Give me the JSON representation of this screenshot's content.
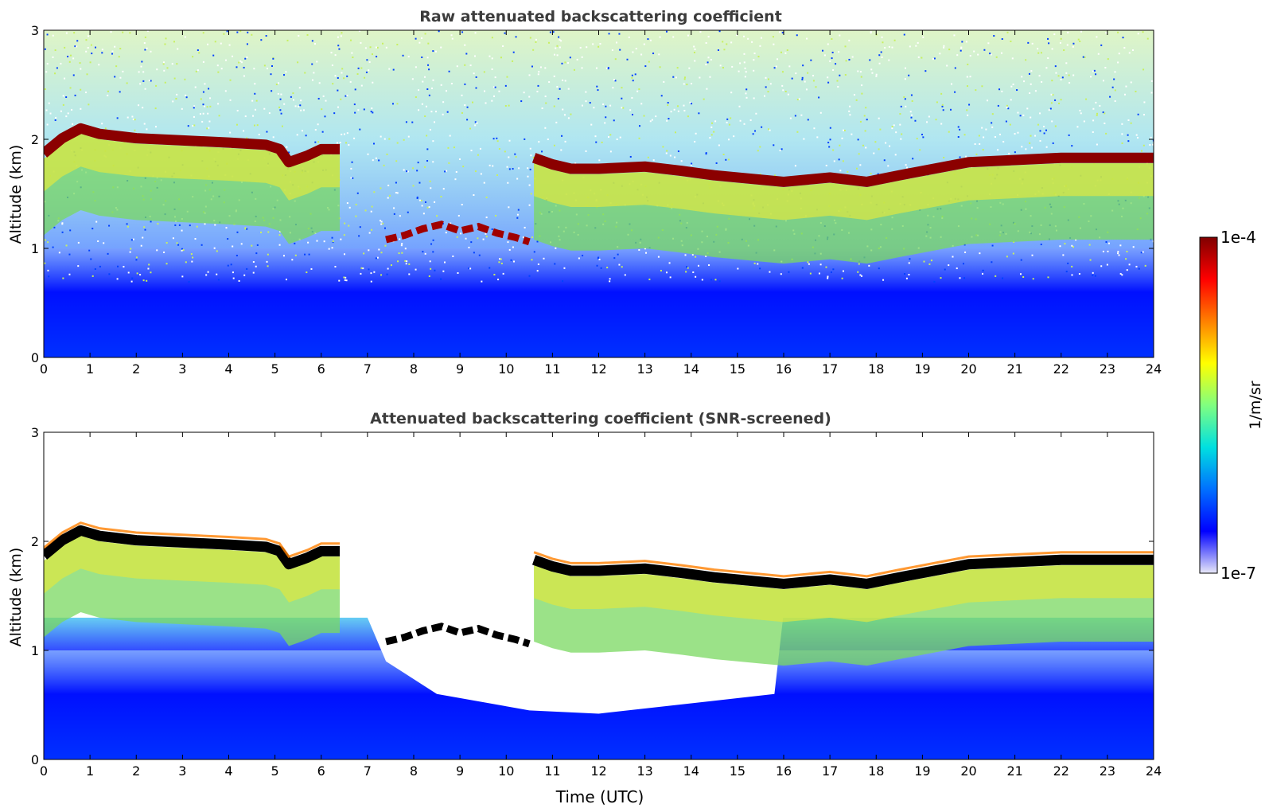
{
  "chart_data": [
    {
      "type": "heatmap",
      "title": "Raw attenuated backscattering coefficient",
      "xlabel": "",
      "ylabel": "Altitude (km)",
      "xlim": [
        0,
        24
      ],
      "ylim": [
        0,
        3
      ],
      "xticks": [
        "0",
        "1",
        "2",
        "3",
        "4",
        "5",
        "6",
        "7",
        "8",
        "9",
        "10",
        "11",
        "12",
        "13",
        "14",
        "15",
        "16",
        "17",
        "18",
        "19",
        "20",
        "21",
        "22",
        "23",
        "24"
      ],
      "yticks": [
        "0",
        "1",
        "2",
        "3"
      ],
      "cloud_base_km": [
        [
          0,
          1.82
        ],
        [
          0.4,
          1.96
        ],
        [
          0.8,
          2.05
        ],
        [
          1.2,
          2.0
        ],
        [
          1.6,
          1.98
        ],
        [
          2,
          1.96
        ],
        [
          3,
          1.94
        ],
        [
          4,
          1.92
        ],
        [
          4.8,
          1.9
        ],
        [
          5.1,
          1.86
        ],
        [
          5.3,
          1.74
        ],
        [
          5.7,
          1.8
        ],
        [
          6,
          1.86
        ],
        [
          6.4,
          1.86
        ],
        [
          10.6,
          1.78
        ],
        [
          11,
          1.72
        ],
        [
          11.4,
          1.68
        ],
        [
          12,
          1.68
        ],
        [
          13,
          1.7
        ],
        [
          13.8,
          1.66
        ],
        [
          14.5,
          1.62
        ],
        [
          15.5,
          1.58
        ],
        [
          16,
          1.56
        ],
        [
          17,
          1.6
        ],
        [
          17.8,
          1.56
        ],
        [
          18.5,
          1.62
        ],
        [
          19.5,
          1.7
        ],
        [
          20,
          1.74
        ],
        [
          21,
          1.76
        ],
        [
          22,
          1.78
        ],
        [
          23,
          1.78
        ],
        [
          24,
          1.78
        ]
      ],
      "low_cloud_km": [
        [
          7.4,
          1.08
        ],
        [
          7.8,
          1.12
        ],
        [
          8.2,
          1.18
        ],
        [
          8.6,
          1.22
        ],
        [
          9,
          1.16
        ],
        [
          9.4,
          1.2
        ],
        [
          9.8,
          1.14
        ],
        [
          10.2,
          1.1
        ],
        [
          10.5,
          1.06
        ]
      ]
    },
    {
      "type": "heatmap",
      "title": "Attenuated backscattering coefficient (SNR-screened)",
      "xlabel": "Time (UTC)",
      "ylabel": "Altitude (km)",
      "xlim": [
        0,
        24
      ],
      "ylim": [
        0,
        3
      ],
      "xticks": [
        "0",
        "1",
        "2",
        "3",
        "4",
        "5",
        "6",
        "7",
        "8",
        "9",
        "10",
        "11",
        "12",
        "13",
        "14",
        "15",
        "16",
        "17",
        "18",
        "19",
        "20",
        "21",
        "22",
        "23",
        "24"
      ],
      "yticks": [
        "0",
        "1",
        "2",
        "3"
      ],
      "cloud_base_km": [
        [
          0,
          1.82
        ],
        [
          0.4,
          1.96
        ],
        [
          0.8,
          2.05
        ],
        [
          1.2,
          2.0
        ],
        [
          1.6,
          1.98
        ],
        [
          2,
          1.96
        ],
        [
          3,
          1.94
        ],
        [
          4,
          1.92
        ],
        [
          4.8,
          1.9
        ],
        [
          5.1,
          1.86
        ],
        [
          5.3,
          1.74
        ],
        [
          5.7,
          1.8
        ],
        [
          6,
          1.86
        ],
        [
          6.4,
          1.86
        ],
        [
          10.6,
          1.78
        ],
        [
          11,
          1.72
        ],
        [
          11.4,
          1.68
        ],
        [
          12,
          1.68
        ],
        [
          13,
          1.7
        ],
        [
          13.8,
          1.66
        ],
        [
          14.5,
          1.62
        ],
        [
          15.5,
          1.58
        ],
        [
          16,
          1.56
        ],
        [
          17,
          1.6
        ],
        [
          17.8,
          1.56
        ],
        [
          18.5,
          1.62
        ],
        [
          19.5,
          1.7
        ],
        [
          20,
          1.74
        ],
        [
          21,
          1.76
        ],
        [
          22,
          1.78
        ],
        [
          23,
          1.78
        ],
        [
          24,
          1.78
        ]
      ],
      "low_cloud_km": [
        [
          7.4,
          1.08
        ],
        [
          7.8,
          1.12
        ],
        [
          8.2,
          1.18
        ],
        [
          8.6,
          1.22
        ],
        [
          9,
          1.16
        ],
        [
          9.4,
          1.2
        ],
        [
          9.8,
          1.14
        ],
        [
          10.2,
          1.1
        ],
        [
          10.5,
          1.06
        ]
      ]
    }
  ],
  "colorbar": {
    "max_label": "1e-4",
    "min_label": "1e-7",
    "unit_label": "1/m/sr",
    "scale": "log",
    "colors": [
      "#e8e8f8",
      "#0000ff",
      "#0070ff",
      "#00e0e0",
      "#80ff80",
      "#ffff00",
      "#ff8000",
      "#ff0000",
      "#800000"
    ]
  }
}
